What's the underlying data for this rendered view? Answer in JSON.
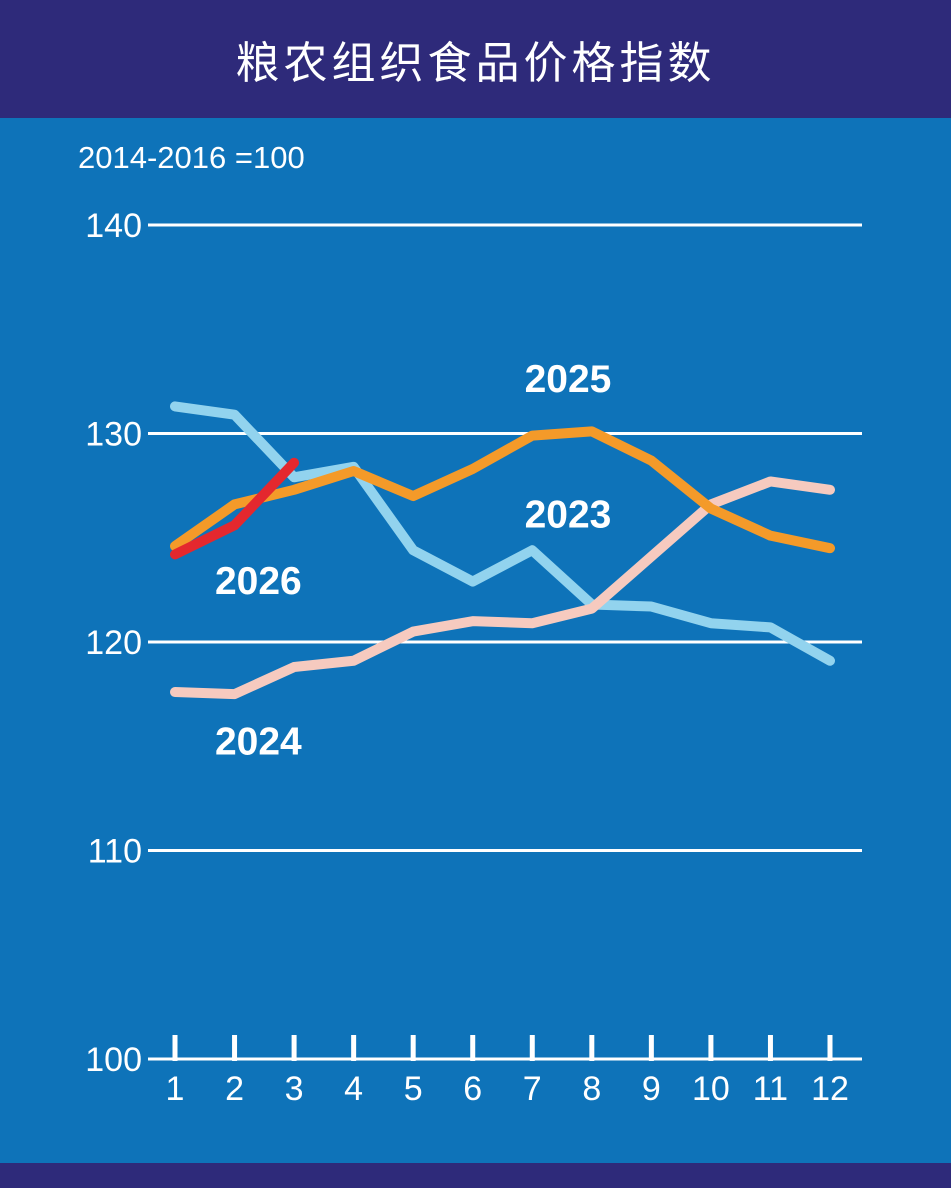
{
  "header": {
    "title": "粮农组织食品价格指数"
  },
  "subtitle": "2014-2016 =100",
  "colors": {
    "header_bg": "#2e2a7a",
    "chart_bg": "#0e73b9",
    "grid": "#ffffff",
    "text": "#ffffff"
  },
  "chart_data": {
    "type": "line",
    "title": "粮农组织食品价格指数",
    "subtitle": "2014-2016 =100",
    "x": [
      1,
      2,
      3,
      4,
      5,
      6,
      7,
      8,
      9,
      10,
      11,
      12
    ],
    "x_tick_labels": [
      "1",
      "2",
      "3",
      "4",
      "5",
      "6",
      "7",
      "8",
      "9",
      "10",
      "11",
      "12"
    ],
    "ylim": [
      100,
      140
    ],
    "yticks": [
      100,
      110,
      120,
      130,
      140
    ],
    "grid": true,
    "legend": "inline-labels",
    "series": [
      {
        "name": "2023",
        "color": "#92d3ee",
        "values": [
          131.3,
          130.9,
          127.9,
          128.4,
          124.4,
          122.9,
          124.4,
          121.8,
          121.7,
          120.9,
          120.7,
          119.1
        ],
        "label_anchor": {
          "x": 7.6,
          "y": 125.5
        }
      },
      {
        "name": "2024",
        "color": "#f6cabf",
        "values": [
          117.6,
          117.5,
          118.8,
          119.1,
          120.5,
          121.0,
          120.9,
          121.6,
          124.1,
          126.6,
          127.7,
          127.3
        ],
        "label_anchor": {
          "x": 2.4,
          "y": 114.6
        }
      },
      {
        "name": "2025",
        "color": "#f49a29",
        "values": [
          124.6,
          126.6,
          127.3,
          128.2,
          127.0,
          128.3,
          129.9,
          130.1,
          128.7,
          126.4,
          125.1,
          124.5
        ],
        "label_anchor": {
          "x": 7.6,
          "y": 132.0
        }
      },
      {
        "name": "2026",
        "color": "#e4282e",
        "values": [
          124.2,
          125.6,
          128.6
        ],
        "label_anchor": {
          "x": 2.4,
          "y": 122.3
        }
      }
    ]
  }
}
